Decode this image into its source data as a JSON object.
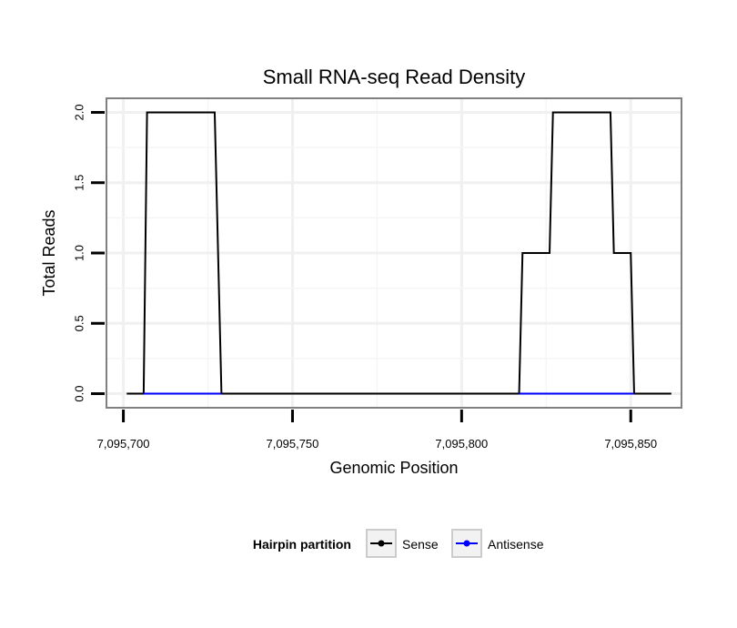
{
  "chart_data": {
    "type": "line",
    "title": "Small RNA-seq Read Density",
    "xlabel": "Genomic Position",
    "ylabel": "Total Reads",
    "xlim": [
      7095695,
      7095865
    ],
    "ylim": [
      -0.1,
      2.1
    ],
    "x_ticks": [
      7095700,
      7095750,
      7095800,
      7095850
    ],
    "x_tick_labels": [
      "7,095,700",
      "7,095,750",
      "7,095,800",
      "7,095,850"
    ],
    "y_ticks": [
      0.0,
      0.5,
      1.0,
      1.5,
      2.0
    ],
    "y_tick_labels": [
      "0.0",
      "0.5",
      "1.0",
      "1.5",
      "2.0"
    ],
    "grid": true,
    "legend": {
      "title": "Hairpin partition",
      "position": "bottom",
      "entries": [
        "Sense",
        "Antisense"
      ]
    },
    "series": [
      {
        "name": "Sense",
        "color": "#000000",
        "x": [
          7095701,
          7095706,
          7095707,
          7095727,
          7095729,
          7095817,
          7095818,
          7095826,
          7095827,
          7095844,
          7095845,
          7095850,
          7095851,
          7095862
        ],
        "y": [
          0,
          0,
          2,
          2,
          0,
          0,
          1,
          1,
          2,
          2,
          1,
          1,
          0,
          0
        ]
      },
      {
        "name": "Antisense",
        "color": "#0000ff",
        "x": [
          7095706,
          7095729,
          7095817,
          7095851
        ],
        "y": [
          0,
          0,
          0,
          0
        ],
        "segments": [
          [
            0,
            1
          ],
          [
            2,
            3
          ]
        ]
      }
    ]
  }
}
